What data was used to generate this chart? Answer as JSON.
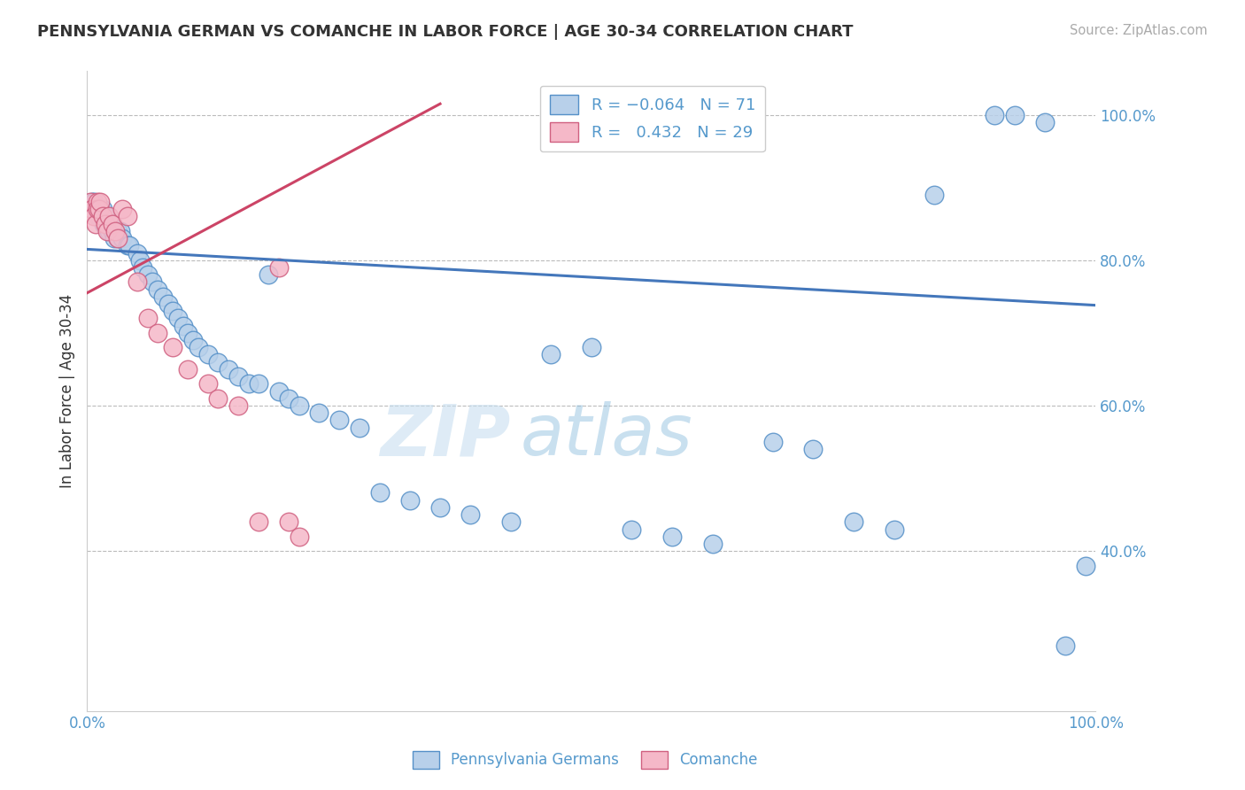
{
  "title": "PENNSYLVANIA GERMAN VS COMANCHE IN LABOR FORCE | AGE 30-34 CORRELATION CHART",
  "source": "Source: ZipAtlas.com",
  "ylabel": "In Labor Force | Age 30-34",
  "legend_label1": "Pennsylvania Germans",
  "legend_label2": "Comanche",
  "legend_r1": "R = -0.064",
  "legend_n1": "N = 71",
  "legend_r2": "R =  0.432",
  "legend_n2": "N = 29",
  "blue_face_color": "#b8d0ea",
  "blue_edge_color": "#5590c8",
  "pink_face_color": "#f5b8c8",
  "pink_edge_color": "#d06080",
  "blue_line_color": "#4477bb",
  "pink_line_color": "#cc4466",
  "xmin": 0.0,
  "xmax": 1.0,
  "ymin": 0.18,
  "ymax": 1.06,
  "yticks": [
    0.4,
    0.6,
    0.8,
    1.0
  ],
  "ytick_labels": [
    "40.0%",
    "60.0%",
    "80.0%",
    "100.0%"
  ],
  "xticks": [
    0.0,
    0.25,
    0.5,
    0.75,
    1.0
  ],
  "xtick_labels": [
    "0.0%",
    "",
    "",
    "",
    "100.0%"
  ],
  "blue_trend_x0": 0.0,
  "blue_trend_x1": 1.0,
  "blue_trend_y0": 0.815,
  "blue_trend_y1": 0.738,
  "pink_trend_x0": 0.0,
  "pink_trend_x1": 0.35,
  "pink_trend_y0": 0.755,
  "pink_trend_y1": 1.015,
  "watermark_zip": "ZIP",
  "watermark_atlas": "atlas",
  "bg_color": "#ffffff",
  "grid_color": "#bbbbbb",
  "blue_scatter": {
    "x": [
      0.005,
      0.007,
      0.009,
      0.01,
      0.01,
      0.012,
      0.013,
      0.015,
      0.015,
      0.016,
      0.018,
      0.02,
      0.02,
      0.022,
      0.022,
      0.025,
      0.025,
      0.027,
      0.03,
      0.03,
      0.033,
      0.035,
      0.04,
      0.042,
      0.05,
      0.052,
      0.055,
      0.06,
      0.065,
      0.07,
      0.075,
      0.08,
      0.085,
      0.09,
      0.095,
      0.1,
      0.105,
      0.11,
      0.12,
      0.13,
      0.14,
      0.15,
      0.16,
      0.17,
      0.18,
      0.19,
      0.2,
      0.21,
      0.23,
      0.25,
      0.27,
      0.29,
      0.32,
      0.35,
      0.38,
      0.42,
      0.46,
      0.5,
      0.54,
      0.58,
      0.62,
      0.68,
      0.72,
      0.76,
      0.8,
      0.84,
      0.9,
      0.92,
      0.95,
      0.97,
      0.99
    ],
    "y": [
      0.88,
      0.88,
      0.87,
      0.86,
      0.87,
      0.86,
      0.87,
      0.86,
      0.87,
      0.85,
      0.86,
      0.85,
      0.86,
      0.85,
      0.84,
      0.84,
      0.85,
      0.83,
      0.84,
      0.83,
      0.84,
      0.83,
      0.82,
      0.82,
      0.81,
      0.8,
      0.79,
      0.78,
      0.77,
      0.76,
      0.75,
      0.74,
      0.73,
      0.72,
      0.71,
      0.7,
      0.69,
      0.68,
      0.67,
      0.66,
      0.65,
      0.64,
      0.63,
      0.63,
      0.78,
      0.62,
      0.61,
      0.6,
      0.59,
      0.58,
      0.57,
      0.48,
      0.47,
      0.46,
      0.45,
      0.44,
      0.67,
      0.68,
      0.43,
      0.42,
      0.41,
      0.55,
      0.54,
      0.44,
      0.43,
      0.89,
      1.0,
      1.0,
      0.99,
      0.27,
      0.38
    ]
  },
  "pink_scatter": {
    "x": [
      0.003,
      0.005,
      0.007,
      0.008,
      0.01,
      0.01,
      0.012,
      0.013,
      0.015,
      0.018,
      0.02,
      0.022,
      0.025,
      0.028,
      0.03,
      0.035,
      0.04,
      0.05,
      0.06,
      0.07,
      0.085,
      0.1,
      0.12,
      0.13,
      0.15,
      0.17,
      0.19,
      0.2,
      0.21
    ],
    "y": [
      0.88,
      0.87,
      0.86,
      0.85,
      0.88,
      0.87,
      0.87,
      0.88,
      0.86,
      0.85,
      0.84,
      0.86,
      0.85,
      0.84,
      0.83,
      0.87,
      0.86,
      0.77,
      0.72,
      0.7,
      0.68,
      0.65,
      0.63,
      0.61,
      0.6,
      0.44,
      0.79,
      0.44,
      0.42
    ]
  }
}
